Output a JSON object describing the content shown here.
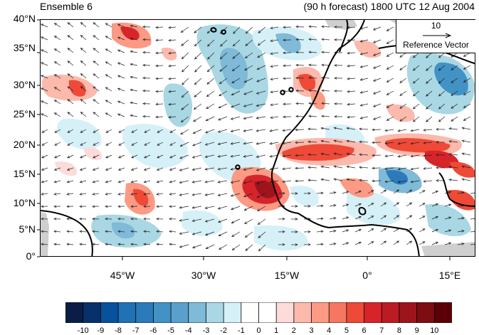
{
  "title_left": "Ensemble 6",
  "title_right": "(90 h forecast) 1800 UTC 12 Aug 2004",
  "lat_ticks": [
    "40°N",
    "35°N",
    "30°N",
    "25°N",
    "20°N",
    "15°N",
    "10°N",
    "5°N",
    "0°"
  ],
  "lon_ticks": [
    "45°W",
    "30°W",
    "15°W",
    "0°",
    "15°E"
  ],
  "reference_vector": {
    "magnitude": "10",
    "label": "Reference Vector"
  },
  "colorbar": {
    "labels": [
      "-10",
      "-9",
      "-8",
      "-7",
      "-6",
      "-5",
      "-4",
      "-3",
      "-2",
      "-1",
      "0",
      "1",
      "2",
      "3",
      "4",
      "5",
      "6",
      "7",
      "8",
      "9",
      "10"
    ],
    "colors": [
      "#0a1d47",
      "#08306b",
      "#08519c",
      "#2171b5",
      "#2b7bba",
      "#4292c6",
      "#5aa0cd",
      "#7fbad8",
      "#a9d7e4",
      "#d6f0f8",
      "#ffffff",
      "#ffffff",
      "#fddbd8",
      "#fcb9ac",
      "#fc9a84",
      "#f67760",
      "#ee4a37",
      "#d7242a",
      "#bb1b22",
      "#9e141d",
      "#7d0c13",
      "#5c0007"
    ]
  }
}
